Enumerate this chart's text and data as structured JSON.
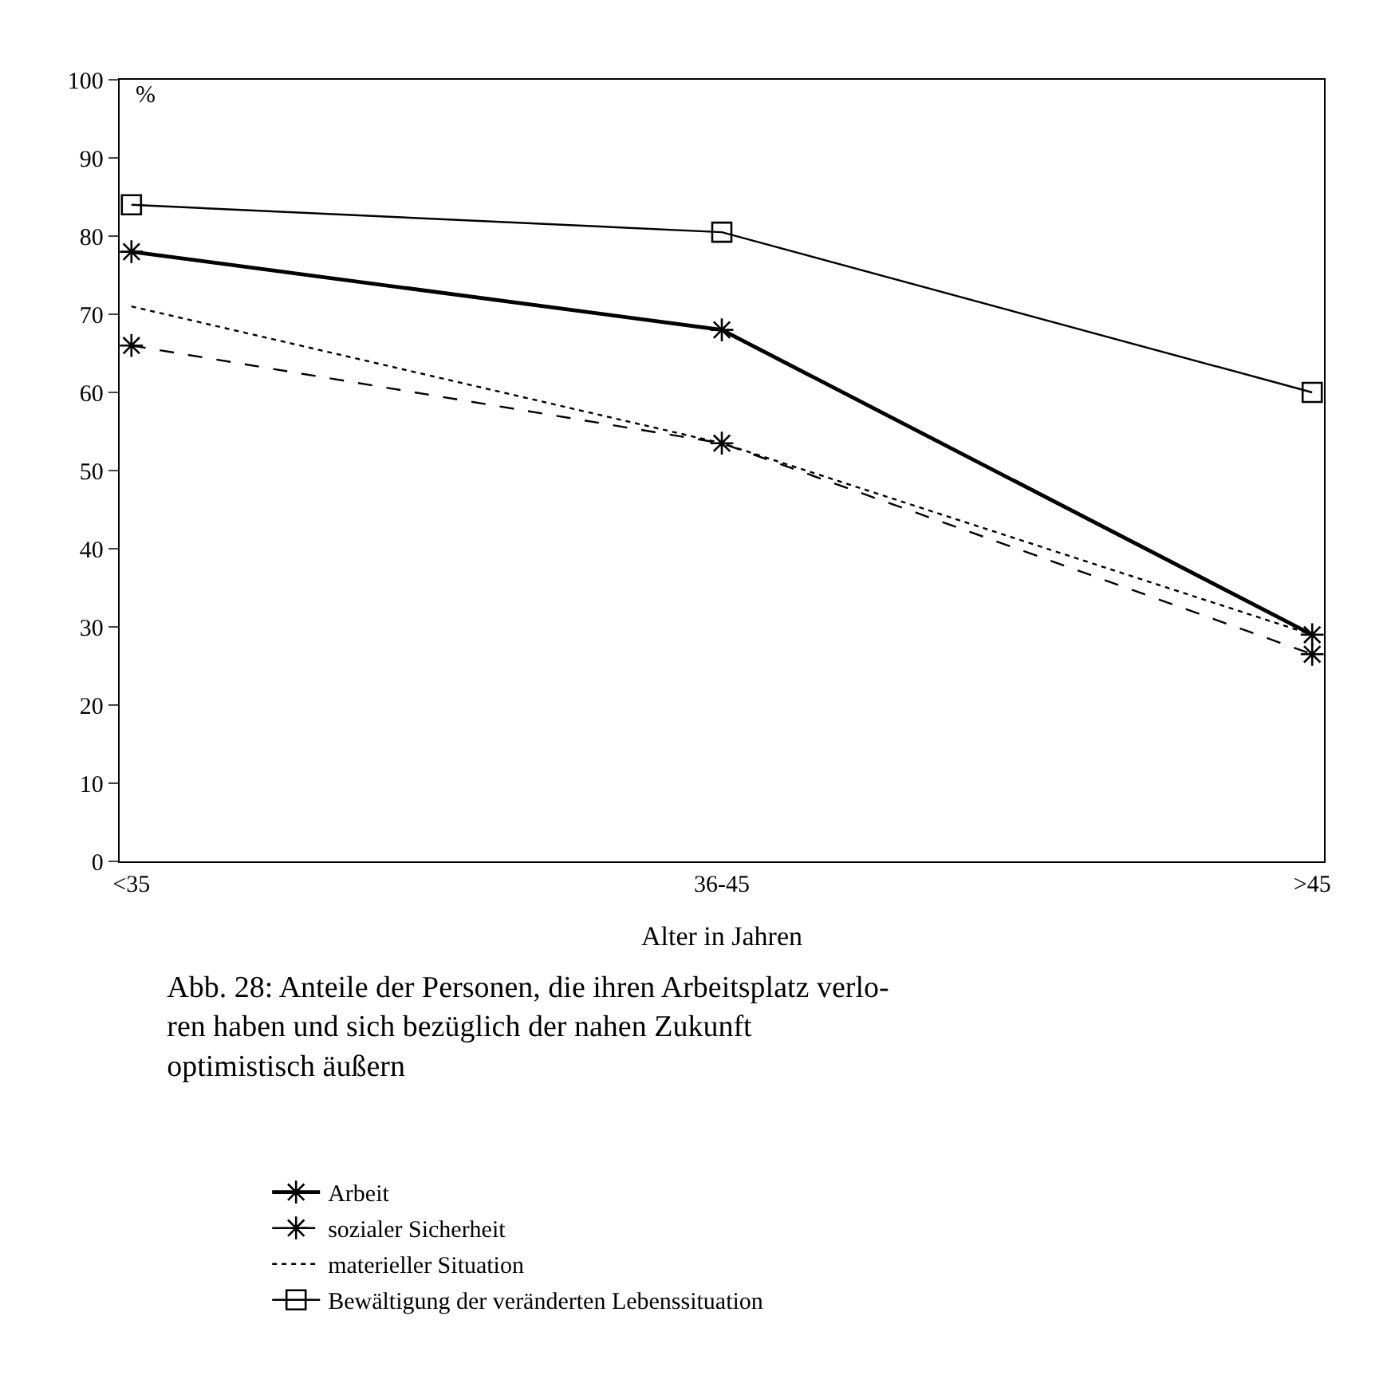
{
  "chart_data": {
    "type": "line",
    "title": "Abb. 28: Anteile der Personen, die ihren Arbeitsplatz verlo-\nren haben und sich bezüglich der nahen Zukunft\noptimistisch äußern",
    "xlabel": "Alter in Jahren",
    "ylabel": "%",
    "categories": [
      "<35",
      "36-45",
      ">45"
    ],
    "series": [
      {
        "name": "Arbeit",
        "color": "#000000",
        "values": [
          78,
          68,
          29
        ],
        "marker": "cross",
        "line_style": "solid"
      },
      {
        "name": "sozialer Sicherheit",
        "color": "#000000",
        "values": [
          66,
          53.5,
          26.5
        ],
        "marker": "cross",
        "line_style": "dashed"
      },
      {
        "name": "materieller Situation",
        "color": "#000000",
        "values": [
          71,
          53.5,
          29
        ],
        "marker": "none",
        "line_style": "dotted"
      },
      {
        "name": "Bewältigung der veränderten Lebenssituation",
        "color": "#000000",
        "values": [
          84,
          80.5,
          60
        ],
        "marker": "square",
        "line_style": "solid"
      }
    ],
    "ylim": [
      0,
      100
    ],
    "yticks": [
      0,
      10,
      20,
      30,
      40,
      50,
      60,
      70,
      80,
      90,
      100
    ],
    "grid": false,
    "legend": "bottom"
  }
}
